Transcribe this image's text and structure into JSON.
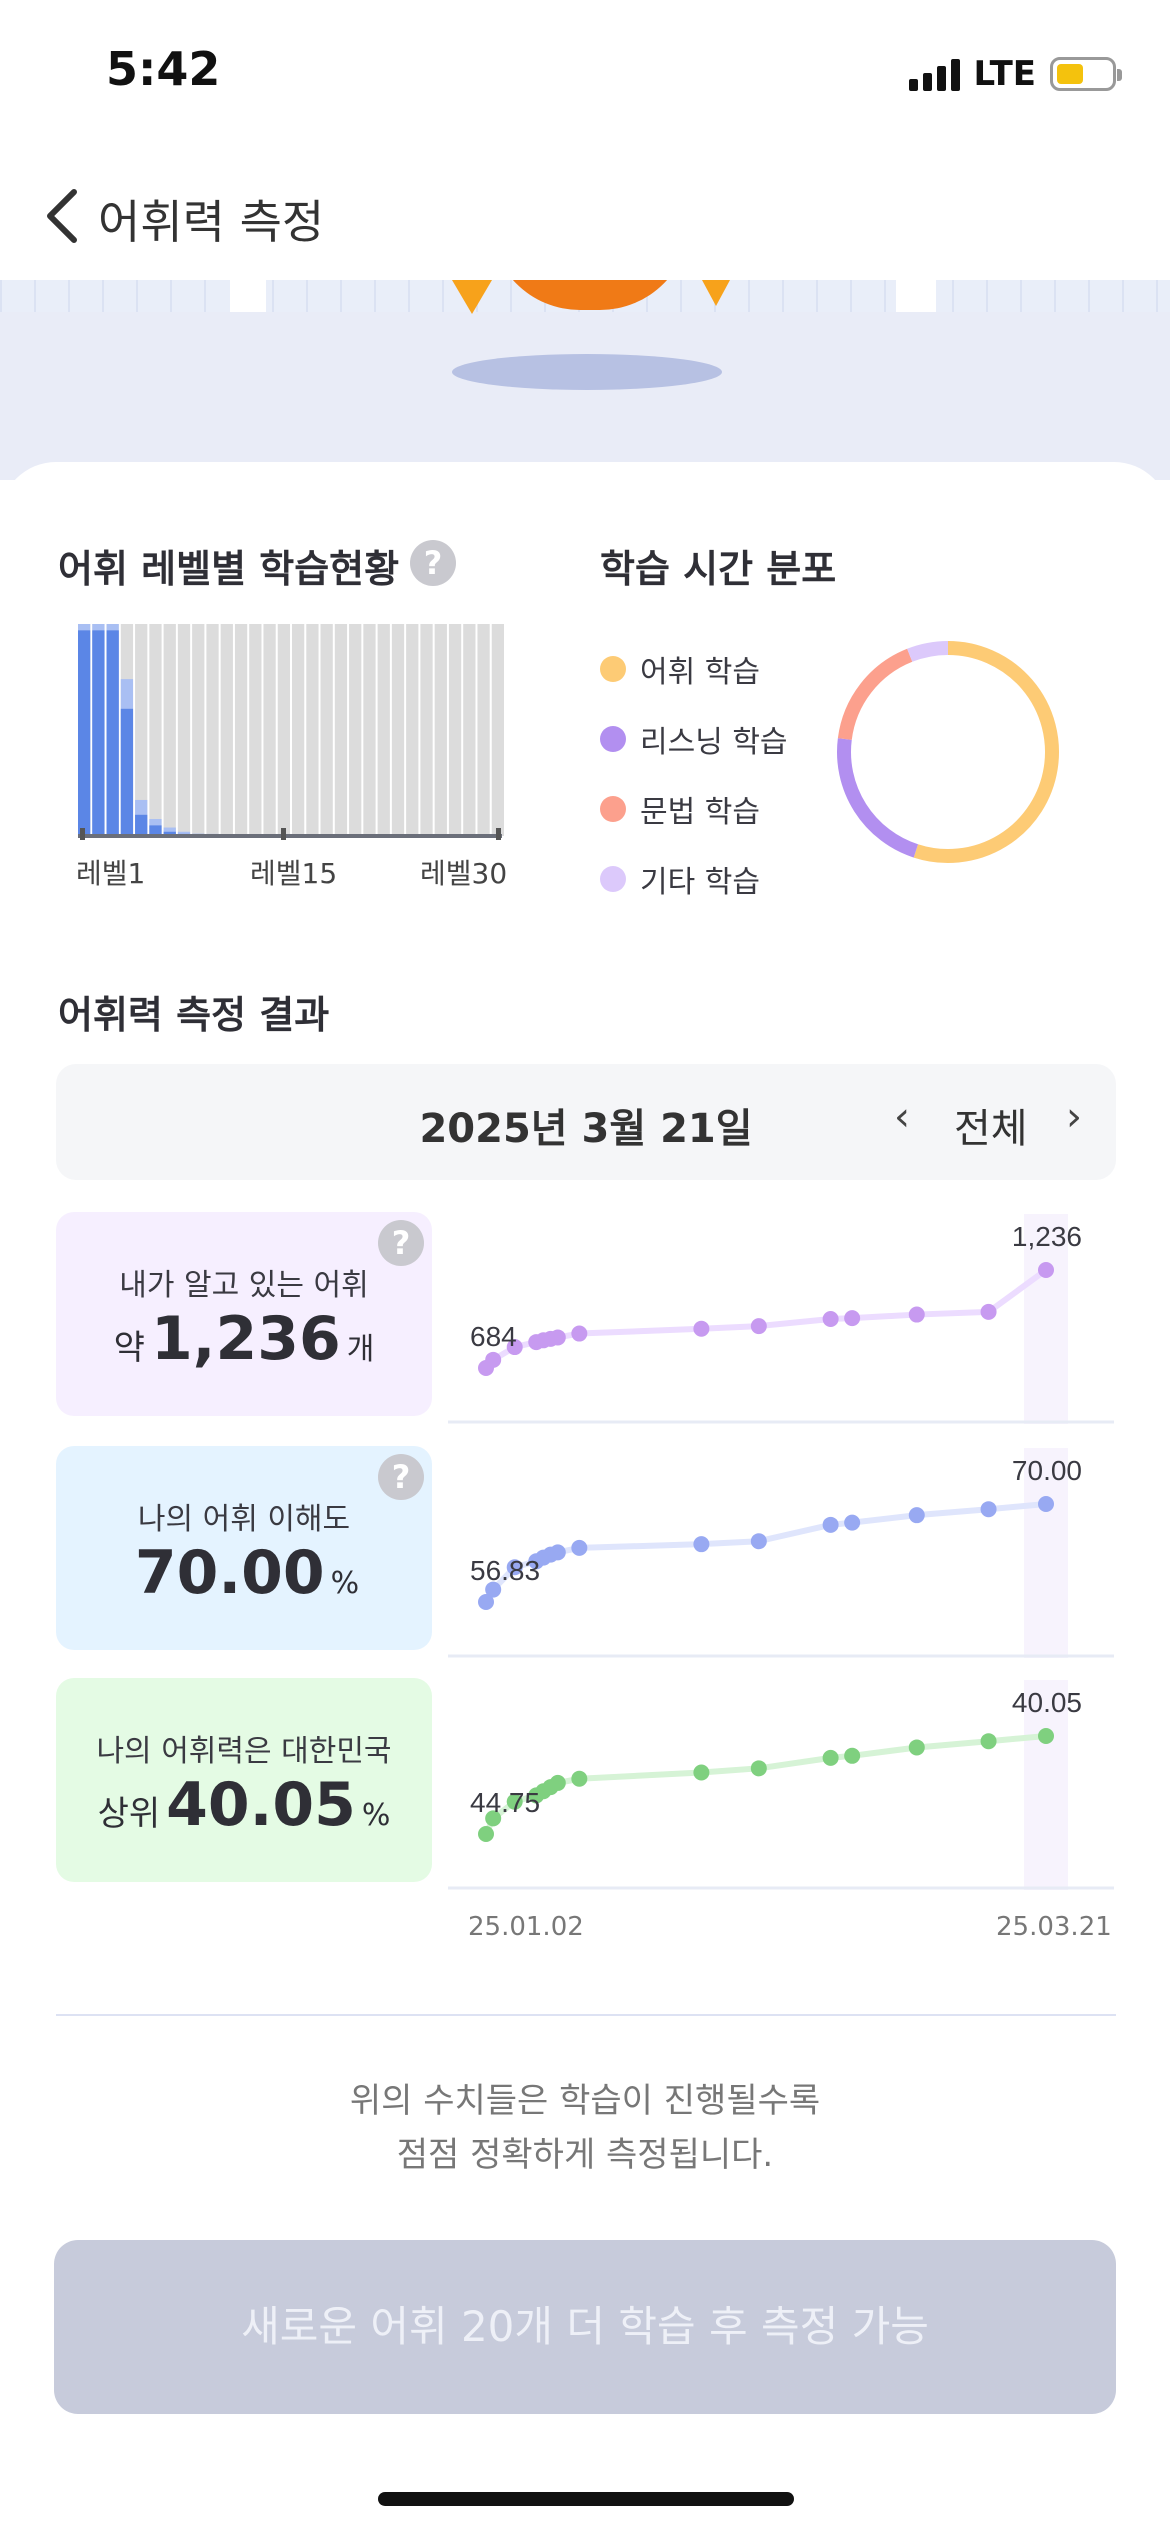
{
  "status": {
    "time": "5:42",
    "network": "LTE"
  },
  "header": {
    "title": "어휘력 측정"
  },
  "level_section": {
    "title": "어휘 레벨별 학습현황",
    "axis_labels": [
      "레벨1",
      "레벨15",
      "레벨30"
    ],
    "bars_fill_ratio": [
      1.0,
      1.0,
      1.0,
      0.74,
      0.17,
      0.08,
      0.04,
      0.02,
      0.01,
      0.01,
      0.0,
      0.0,
      0.0,
      0.0,
      0.0,
      0.0,
      0.0,
      0.0,
      0.0,
      0.0,
      0.0,
      0.0,
      0.0,
      0.0,
      0.0,
      0.0,
      0.0,
      0.0,
      0.0,
      0.0
    ],
    "bars_dark_ratio": [
      0.97,
      0.97,
      0.97,
      0.6,
      0.1,
      0.05,
      0.02,
      0.01,
      0.01,
      0.0,
      0.0,
      0.0,
      0.0,
      0.0,
      0.0,
      0.0,
      0.0,
      0.0,
      0.0,
      0.0,
      0.0,
      0.0,
      0.0,
      0.0,
      0.0,
      0.0,
      0.0,
      0.0,
      0.0,
      0.0
    ]
  },
  "time_section": {
    "title": "학습 시간 분포",
    "legend": [
      {
        "label": "어휘 학습",
        "color": "#fdcb75"
      },
      {
        "label": "리스닝 학습",
        "color": "#b28ff0"
      },
      {
        "label": "문법 학습",
        "color": "#fca08d"
      },
      {
        "label": "기타 학습",
        "color": "#dcc9fb"
      }
    ],
    "share_percent": [
      55,
      22,
      17,
      6
    ]
  },
  "result_section": {
    "title": "어휘력 측정 결과",
    "date": "2025년 3월 21일",
    "period": "전체",
    "prev_icon": "‹",
    "next_icon": "›"
  },
  "stats": [
    {
      "label": "내가 알고 있는 어휘",
      "prefix": "약",
      "value": "1,236",
      "unit": "개",
      "bg": "#f6efff",
      "color": "#c79af0",
      "line": "#ecdcff",
      "start_label": "684",
      "end_label": "1,236",
      "has_help": true
    },
    {
      "label": "나의 어휘 이해도",
      "prefix": "",
      "value": "70.00",
      "unit": "%",
      "bg": "#e4f3ff",
      "color": "#98a9f2",
      "line": "#dfe5fc",
      "start_label": "56.83",
      "end_label": "70.00",
      "has_help": true
    },
    {
      "label": "나의 어휘력은 대한민국",
      "prefix": "상위",
      "value": "40.05",
      "unit": "%",
      "bg": "#e4fbe4",
      "color": "#7fd07f",
      "line": "#d6f3d6",
      "start_label": "44.75",
      "end_label": "40.05",
      "has_help": false
    }
  ],
  "chart_data": {
    "type": "line",
    "x": [
      "25.01.02",
      "25.01.03",
      "25.01.06",
      "25.01.09",
      "25.01.10",
      "25.01.11",
      "25.01.12",
      "25.01.15",
      "25.02.01",
      "25.02.09",
      "25.02.19",
      "25.02.22",
      "25.03.03",
      "25.03.13",
      "25.03.21"
    ],
    "series": [
      {
        "values": [
          684,
          730,
          802,
          830,
          840,
          848,
          856,
          878,
          905,
          920,
          960,
          965,
          985,
          1000,
          1236
        ]
      },
      {
        "values": [
          56.83,
          58.5,
          61.5,
          62.3,
          62.8,
          63.2,
          63.5,
          64.1,
          64.6,
          65.0,
          67.2,
          67.5,
          68.5,
          69.3,
          70.0
        ]
      },
      {
        "values": [
          44.75,
          44.0,
          43.2,
          42.9,
          42.7,
          42.5,
          42.3,
          42.1,
          41.8,
          41.6,
          41.1,
          41.0,
          40.6,
          40.3,
          40.05
        ]
      }
    ],
    "x_axis_labels": [
      "25.01.02",
      "25.03.21"
    ]
  },
  "footer_note": [
    "위의 수치들은 학습이 진행될수록",
    "점점 정확하게 측정됩니다."
  ],
  "cta_label": "새로운 어휘 20개 더 학습 후 측정 가능"
}
